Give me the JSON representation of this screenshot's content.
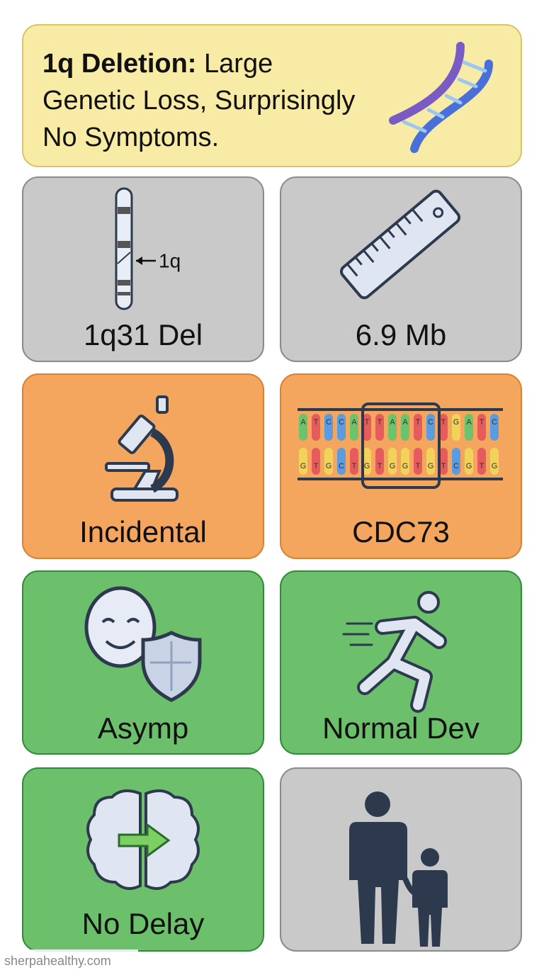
{
  "header": {
    "title_bold": "1q Deletion:",
    "title_lines": [
      "Large",
      "Genetic Loss, Surprisingly",
      "No Symptoms."
    ]
  },
  "cards": [
    {
      "label": "1q31 Del",
      "icon_label": "1q"
    },
    {
      "label": "6.9 Mb"
    },
    {
      "label": "Incidental"
    },
    {
      "label": "CDC73",
      "sequence_top": [
        "A",
        "T",
        "C",
        "C",
        "A",
        "T",
        "T",
        "A",
        "A",
        "T",
        "C",
        "T",
        "G",
        "A",
        "T",
        "C"
      ],
      "sequence_bottom": [
        "G",
        "T",
        "G",
        "C",
        "T",
        "G",
        "T",
        "G",
        "G",
        "T",
        "G",
        "T",
        "C",
        "G",
        "T",
        "G"
      ]
    },
    {
      "label": "Asymp"
    },
    {
      "label": "Normal Dev"
    },
    {
      "label": "No Delay"
    }
  ],
  "watermark": "sherpahealthy.com"
}
